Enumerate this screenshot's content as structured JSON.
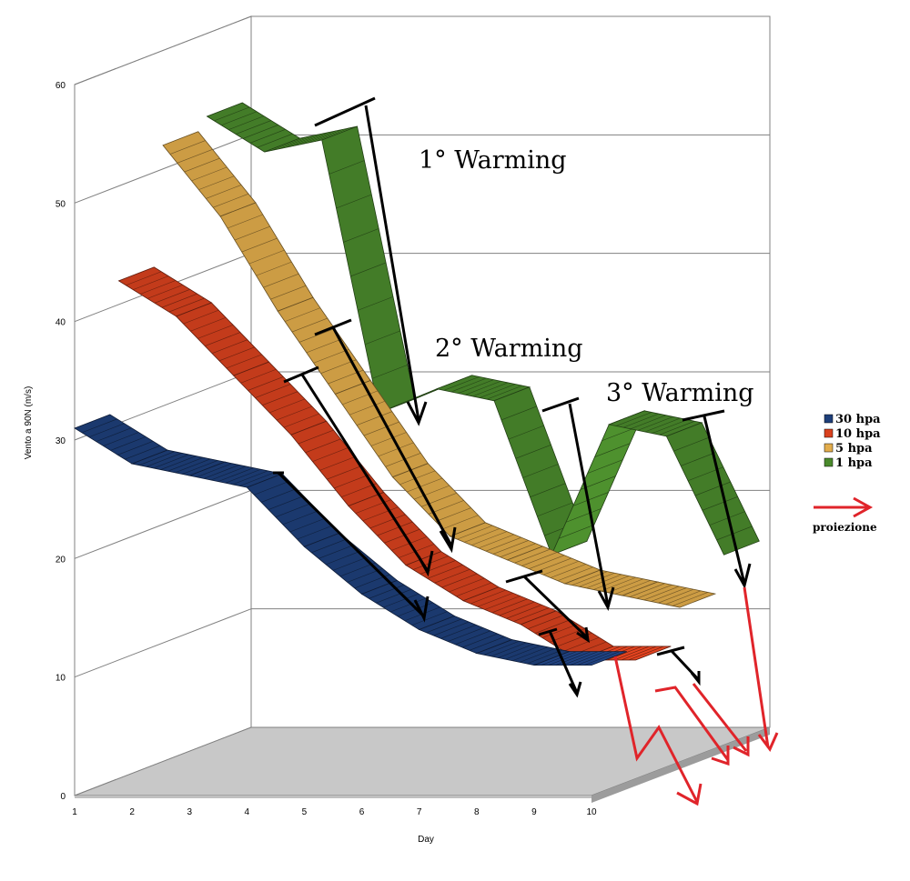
{
  "chart_data": {
    "type": "area",
    "xlabel": "Day",
    "ylabel": "Vento a 90N (m/s)",
    "categories": [
      "1",
      "2",
      "3",
      "4",
      "5",
      "6",
      "7",
      "8",
      "9",
      "10"
    ],
    "yticks": [
      "0",
      "10",
      "20",
      "30",
      "40",
      "50",
      "60"
    ],
    "ylim": [
      0,
      60
    ],
    "series": [
      {
        "name": "30 hpa",
        "color": "#1e3f7a",
        "values": [
          31,
          28,
          27,
          26,
          21,
          17,
          14,
          12,
          11,
          11
        ]
      },
      {
        "name": "10 hpa",
        "color": "#d9411e",
        "values": [
          42,
          39,
          34,
          29,
          23,
          18,
          15,
          13,
          10,
          10
        ]
      },
      {
        "name": "5 hpa",
        "color": "#e3ad4c",
        "values": [
          52,
          46,
          38,
          31,
          24,
          19,
          17,
          15,
          14,
          13
        ]
      },
      {
        "name": "1 hpa",
        "color": "#4a8a2c",
        "values": [
          53,
          50,
          51,
          28,
          30,
          29,
          16,
          27,
          26,
          16
        ]
      }
    ],
    "grid": true,
    "legend_position": "right",
    "annotations": [
      "1° Warming",
      "2° Warming",
      "3° Warming"
    ],
    "projection_label": "proiezione"
  }
}
